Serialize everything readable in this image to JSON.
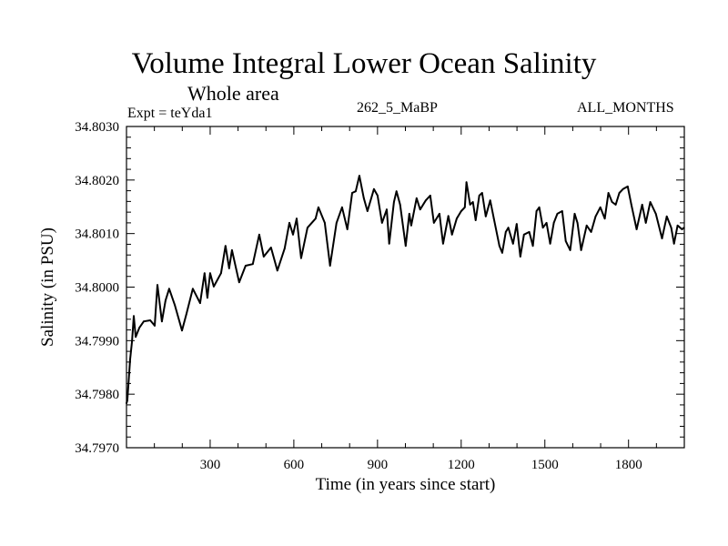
{
  "chart_data": {
    "type": "line",
    "title": "Volume Integral Lower Ocean Salinity",
    "subtitle": "Whole area",
    "annotations": {
      "experiment": "Expt = teYda1",
      "run": "262_5_MaBP",
      "months": "ALL_MONTHS"
    },
    "xlabel": "Time (in years since start)",
    "ylabel": "Salinity (in PSU)",
    "xlim": [
      0,
      2000
    ],
    "ylim": [
      34.797,
      34.803
    ],
    "xticks": [
      300,
      600,
      900,
      1200,
      1500,
      1800
    ],
    "xtick_labels": [
      "300",
      "600",
      "900",
      "1200",
      "1500",
      "1800"
    ],
    "x_minor_step": 100,
    "yticks": [
      34.797,
      34.798,
      34.799,
      34.8,
      34.801,
      34.802,
      34.803
    ],
    "ytick_labels": [
      "34.7970",
      "34.7980",
      "34.7990",
      "34.8000",
      "34.8010",
      "34.8020",
      "34.8030"
    ],
    "y_minor_step": 0.0002,
    "grid": false,
    "legend": "none",
    "series": [
      {
        "name": "Lower Ocean Salinity",
        "color": "#000000",
        "x": [
          0,
          3,
          13,
          20,
          26,
          33,
          46,
          62,
          85,
          101,
          111,
          127,
          140,
          153,
          173,
          199,
          215,
          238,
          264,
          280,
          290,
          300,
          313,
          339,
          355,
          368,
          378,
          404,
          427,
          453,
          476,
          492,
          518,
          541,
          567,
          584,
          597,
          610,
          626,
          649,
          678,
          688,
          711,
          730,
          753,
          773,
          792,
          809,
          822,
          835,
          851,
          864,
          887,
          900,
          916,
          933,
          942,
          959,
          968,
          981,
          1001,
          1014,
          1021,
          1040,
          1053,
          1073,
          1089,
          1102,
          1122,
          1135,
          1154,
          1167,
          1184,
          1200,
          1213,
          1219,
          1232,
          1242,
          1252,
          1265,
          1275,
          1288,
          1304,
          1317,
          1337,
          1347,
          1360,
          1369,
          1386,
          1399,
          1412,
          1425,
          1444,
          1457,
          1470,
          1480,
          1493,
          1506,
          1519,
          1532,
          1545,
          1562,
          1575,
          1591,
          1607,
          1617,
          1630,
          1650,
          1666,
          1682,
          1699,
          1715,
          1728,
          1741,
          1754,
          1767,
          1780,
          1797,
          1810,
          1829,
          1849,
          1862,
          1878,
          1898,
          1920,
          1937,
          1953,
          1963,
          1976,
          1992,
          1999
        ],
        "y": [
          34.79783,
          34.79788,
          34.79865,
          34.79899,
          34.79946,
          34.79907,
          34.79924,
          34.79936,
          34.79938,
          34.79928,
          34.80004,
          34.79936,
          34.79975,
          34.79997,
          34.79967,
          34.79919,
          34.7995,
          34.79997,
          34.7997,
          34.80026,
          34.7998,
          34.80026,
          34.80001,
          34.80026,
          34.80077,
          34.80035,
          34.80069,
          34.80009,
          34.8004,
          34.80043,
          34.80098,
          34.80057,
          34.80074,
          34.80031,
          34.80072,
          34.8012,
          34.80098,
          34.80128,
          34.80054,
          34.80111,
          34.80128,
          34.80149,
          34.8012,
          34.8004,
          34.8012,
          34.80149,
          34.80108,
          34.80176,
          34.80179,
          34.80208,
          34.80166,
          34.80142,
          34.80183,
          34.80171,
          34.8012,
          34.80145,
          34.80081,
          34.80159,
          34.80179,
          34.80154,
          34.80077,
          34.80137,
          34.80115,
          34.80166,
          34.80145,
          34.80162,
          34.80171,
          34.8012,
          34.80137,
          34.80081,
          34.80133,
          34.80098,
          34.80128,
          34.80142,
          34.80149,
          34.80196,
          34.80154,
          34.80159,
          34.80125,
          34.80171,
          34.80176,
          34.80132,
          34.80162,
          34.80128,
          34.80077,
          34.80064,
          34.80103,
          34.80111,
          34.80081,
          34.80118,
          34.80057,
          34.80098,
          34.80103,
          34.80077,
          34.80142,
          34.80149,
          34.80111,
          34.8012,
          34.80081,
          34.8012,
          34.80137,
          34.80142,
          34.80086,
          34.80069,
          34.80137,
          34.8012,
          34.80069,
          34.80115,
          34.80103,
          34.80132,
          34.80149,
          34.80128,
          34.80176,
          34.80159,
          34.80154,
          34.80176,
          34.80183,
          34.80188,
          34.80154,
          34.80108,
          34.80154,
          34.8012,
          34.80159,
          34.80137,
          34.80091,
          34.80132,
          34.80111,
          34.80081,
          34.80115,
          34.80108,
          34.80111
        ]
      }
    ]
  }
}
